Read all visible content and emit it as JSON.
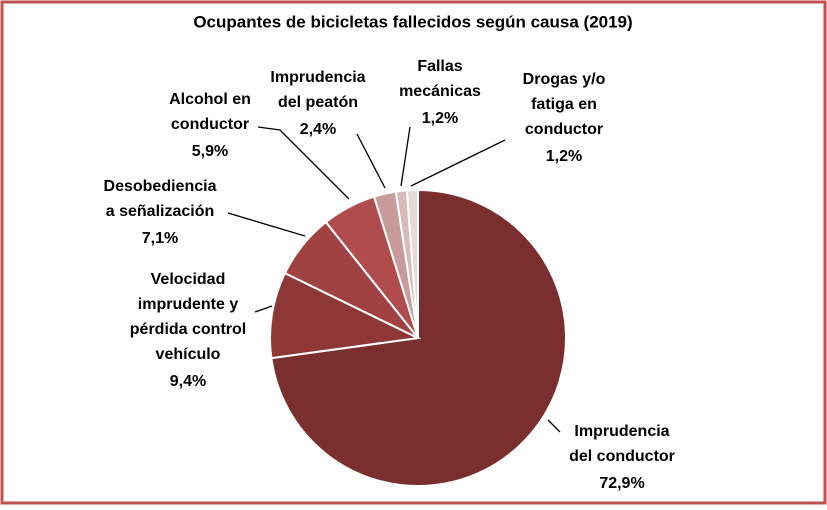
{
  "chart_data": {
    "type": "pie",
    "title": "Ocupantes de bicicletas fallecidos según causa (2019)",
    "categories": [
      [
        "Imprudencia",
        "del conductor"
      ],
      [
        "Velocidad",
        "imprudente y",
        "pérdida control",
        "vehículo"
      ],
      [
        "Desobediencia",
        "a señalización"
      ],
      [
        "Alcohol en",
        "conductor"
      ],
      [
        "Imprudencia",
        "del peatón"
      ],
      [
        "Fallas",
        "mecánicas"
      ],
      [
        "Drogas y/o",
        "fatiga en",
        "conductor"
      ]
    ],
    "values": [
      72.9,
      9.4,
      7.1,
      5.9,
      2.4,
      1.2,
      1.2
    ],
    "value_labels": [
      "72,9%",
      "9,4%",
      "7,1%",
      "5,9%",
      "2,4%",
      "1,2%",
      "1,2%"
    ],
    "colors": [
      "#7a2e2e",
      "#8d3737",
      "#a04242",
      "#b04c4c",
      "#c99a9a",
      "#d9baba",
      "#e8d8d8"
    ]
  }
}
